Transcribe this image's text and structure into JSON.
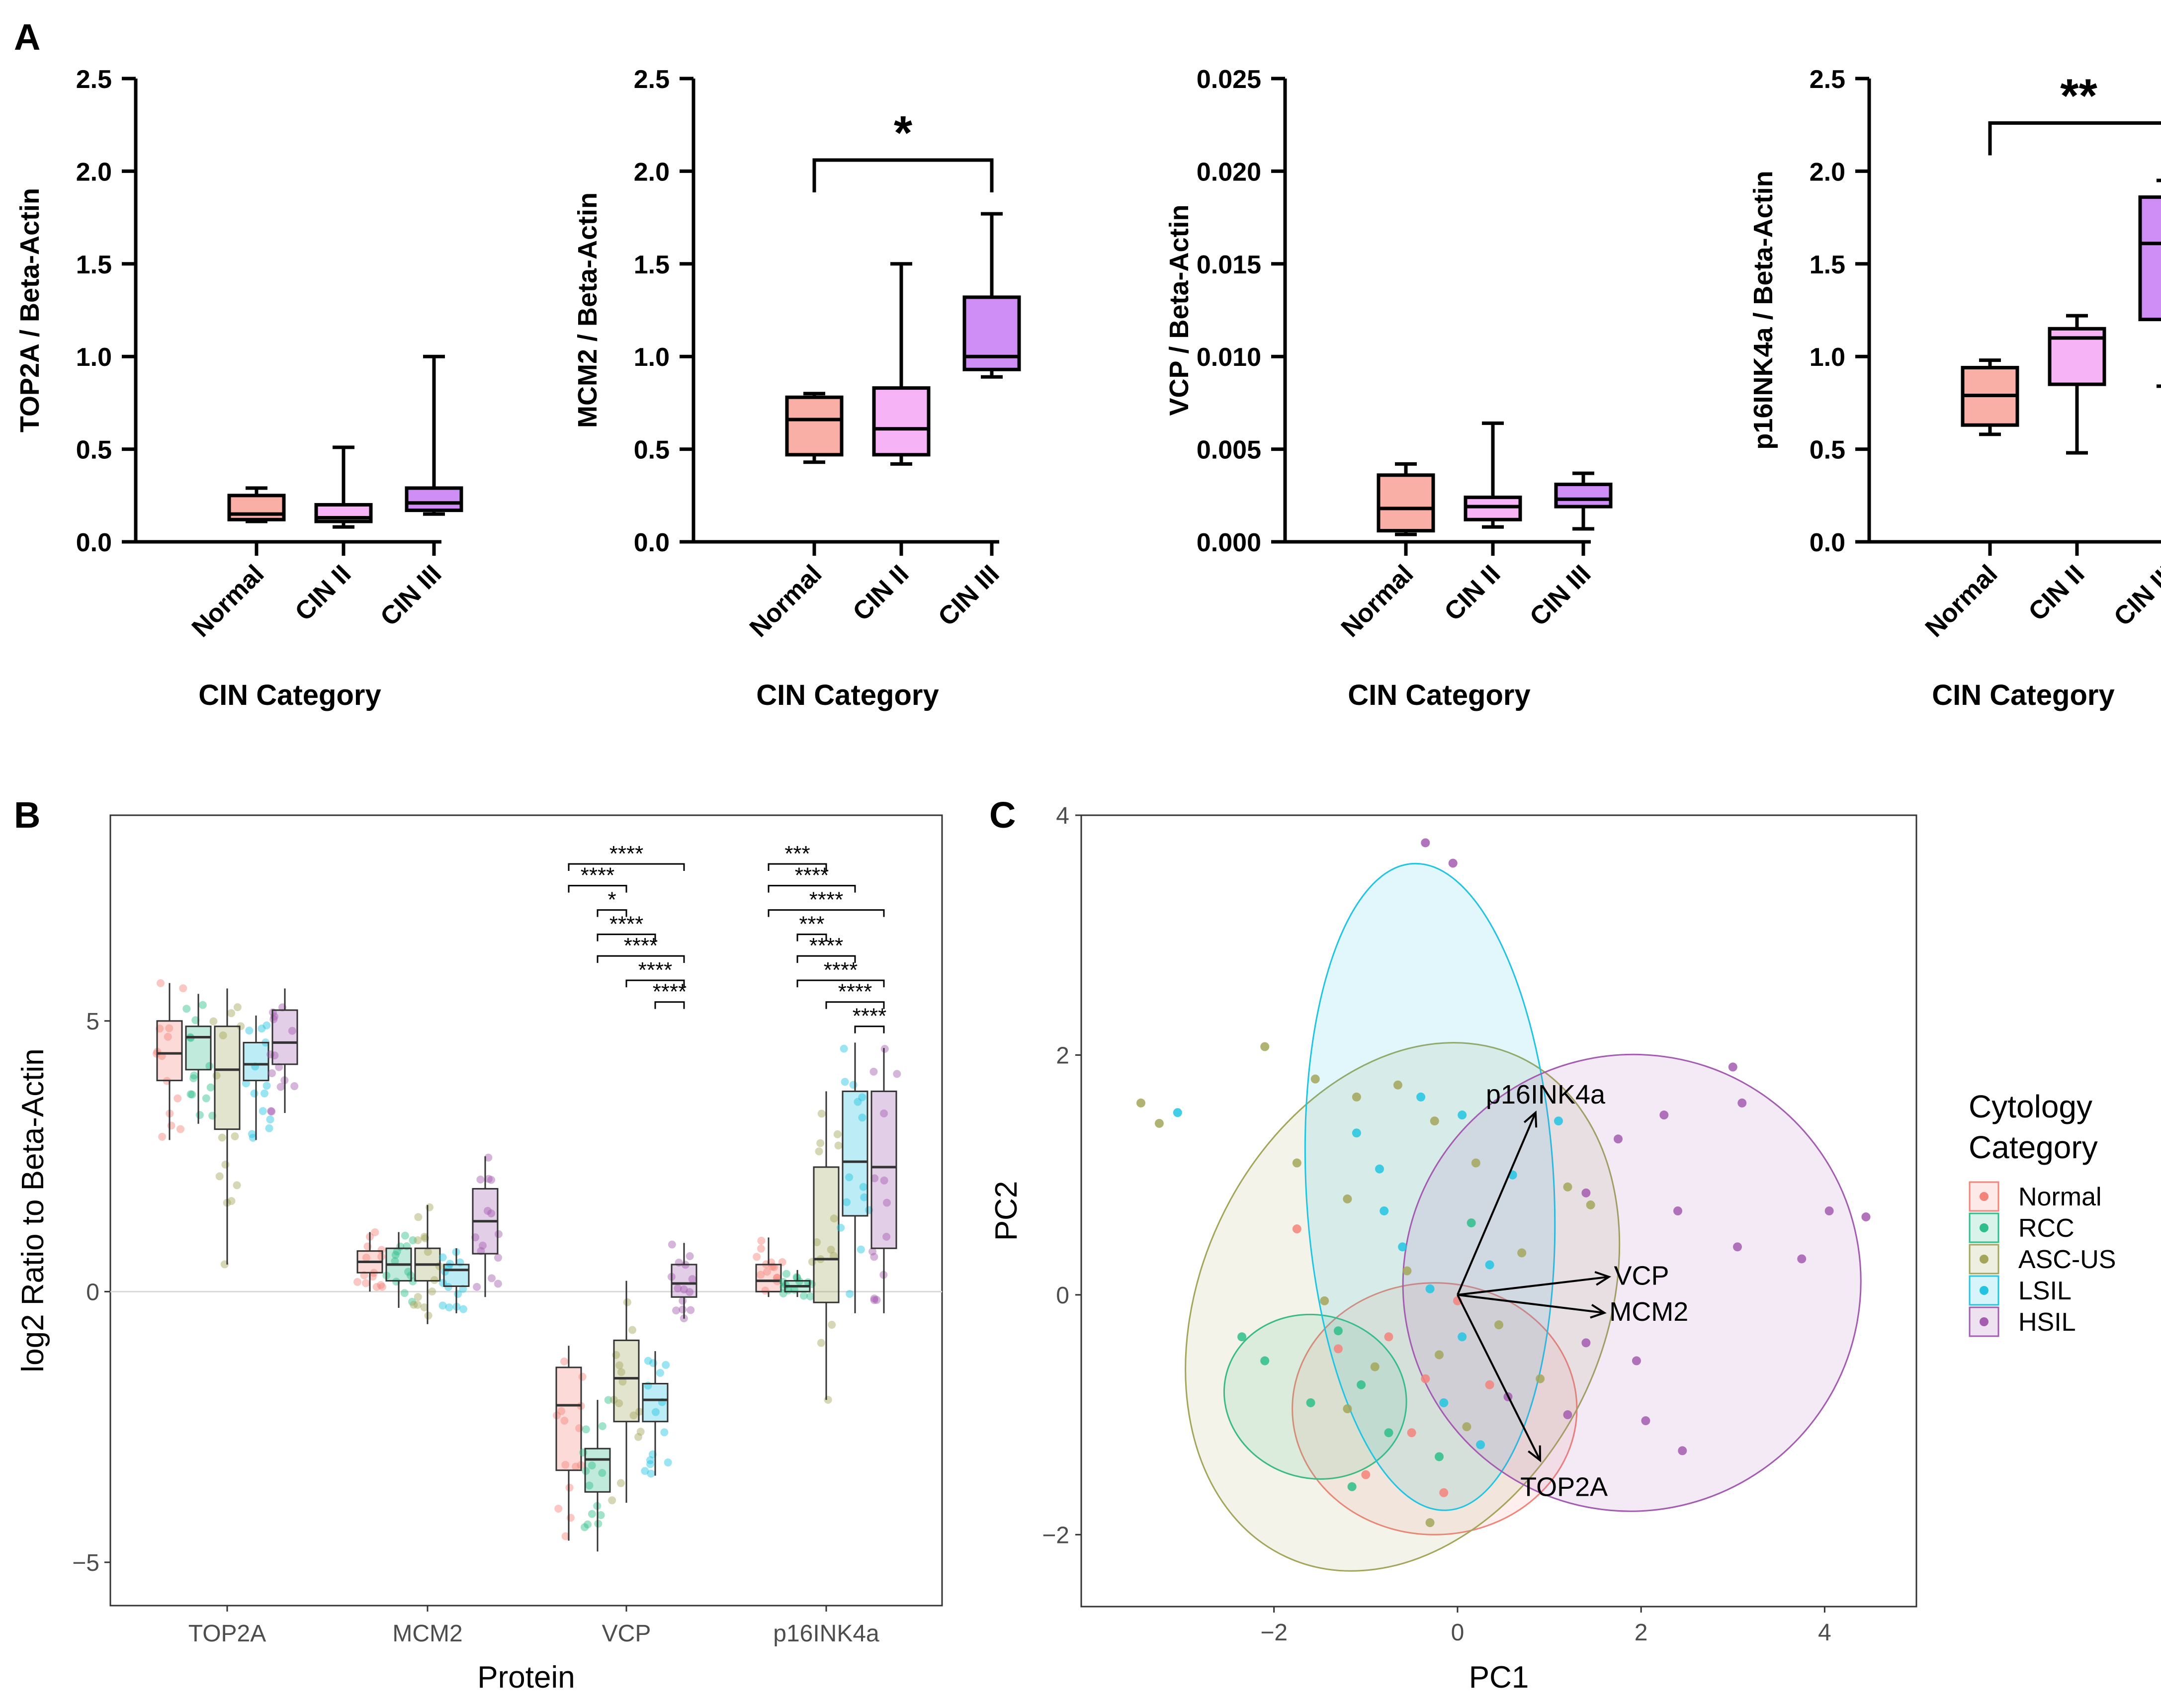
{
  "panel_labels": [
    "A",
    "B",
    "C"
  ],
  "colors": {
    "normal": "#F4837A",
    "rcc": "#2DBE8A",
    "ascus": "#A3A65A",
    "lsil": "#22C4E2",
    "hsil": "#A35CB0",
    "a_normal_fill": "#FAAFA6",
    "a_cin2_fill": "#F6B3F5",
    "a_cin3_fill": "#CF8EF5"
  },
  "chart_data": [
    {
      "id": "A1",
      "type": "box",
      "title": "",
      "xlabel": "CIN Category",
      "ylabel": "TOP2A / Beta-Actin",
      "categories": [
        "Normal",
        "CIN II",
        "CIN III"
      ],
      "ylim": [
        0,
        2.5
      ],
      "yticks": [
        "0.0",
        "0.5",
        "1.0",
        "1.5",
        "2.0",
        "2.5"
      ],
      "boxes": [
        {
          "min": 0.11,
          "q1": 0.12,
          "median": 0.15,
          "q3": 0.25,
          "max": 0.29
        },
        {
          "min": 0.08,
          "q1": 0.11,
          "median": 0.13,
          "q3": 0.2,
          "max": 0.51
        },
        {
          "min": 0.15,
          "q1": 0.17,
          "median": 0.21,
          "q3": 0.29,
          "max": 1.0
        }
      ],
      "significance": []
    },
    {
      "id": "A2",
      "type": "box",
      "title": "",
      "xlabel": "CIN Category",
      "ylabel": "MCM2 / Beta-Actin",
      "categories": [
        "Normal",
        "CIN II",
        "CIN III"
      ],
      "ylim": [
        0,
        2.5
      ],
      "yticks": [
        "0.0",
        "0.5",
        "1.0",
        "1.5",
        "2.0",
        "2.5"
      ],
      "boxes": [
        {
          "min": 0.43,
          "q1": 0.47,
          "median": 0.66,
          "q3": 0.78,
          "max": 0.8
        },
        {
          "min": 0.42,
          "q1": 0.47,
          "median": 0.61,
          "q3": 0.83,
          "max": 1.5
        },
        {
          "min": 0.89,
          "q1": 0.93,
          "median": 1.0,
          "q3": 1.32,
          "max": 1.77
        }
      ],
      "significance": [
        {
          "from": 0,
          "to": 2,
          "y": 2.06,
          "label": "*"
        }
      ]
    },
    {
      "id": "A3",
      "type": "box",
      "title": "",
      "xlabel": "CIN Category",
      "ylabel": "VCP / Beta-Actin",
      "categories": [
        "Normal",
        "CIN II",
        "CIN III"
      ],
      "ylim": [
        0,
        0.025
      ],
      "yticks": [
        "0.000",
        "0.005",
        "0.010",
        "0.015",
        "0.020",
        "0.025"
      ],
      "boxes": [
        {
          "min": 0.0004,
          "q1": 0.0006,
          "median": 0.0018,
          "q3": 0.0036,
          "max": 0.0042
        },
        {
          "min": 0.0008,
          "q1": 0.0012,
          "median": 0.0019,
          "q3": 0.0024,
          "max": 0.0064
        },
        {
          "min": 0.0007,
          "q1": 0.0019,
          "median": 0.0023,
          "q3": 0.0031,
          "max": 0.0037
        }
      ],
      "significance": []
    },
    {
      "id": "A4",
      "type": "box",
      "title": "",
      "xlabel": "CIN Category",
      "ylabel": "p16INK4a / Beta-Actin",
      "categories": [
        "Normal",
        "CIN II",
        "CIN III"
      ],
      "ylim": [
        0,
        2.5
      ],
      "yticks": [
        "0.0",
        "0.5",
        "1.0",
        "1.5",
        "2.0",
        "2.5"
      ],
      "boxes": [
        {
          "min": 0.58,
          "q1": 0.63,
          "median": 0.79,
          "q3": 0.94,
          "max": 0.98
        },
        {
          "min": 0.48,
          "q1": 0.85,
          "median": 1.1,
          "q3": 1.15,
          "max": 1.22
        },
        {
          "min": 0.84,
          "q1": 1.2,
          "median": 1.61,
          "q3": 1.86,
          "max": 1.95
        }
      ],
      "significance": [
        {
          "from": 0,
          "to": 2,
          "y": 2.26,
          "label": "**"
        }
      ]
    },
    {
      "id": "B",
      "type": "box",
      "title": "",
      "xlabel": "Protein",
      "ylabel": "log2 Ratio to Beta-Actin",
      "categories": [
        "TOP2A",
        "MCM2",
        "VCP",
        "p16INK4a"
      ],
      "groups": [
        "Normal",
        "RCC",
        "ASC-US",
        "LSIL",
        "HSIL"
      ],
      "ylim": [
        -5.8,
        8.8
      ],
      "yticks": [
        -5,
        0,
        5
      ],
      "ytick_labels": [
        "−5",
        "0",
        "5"
      ],
      "series": [
        {
          "name": "TOP2A",
          "boxes": [
            {
              "min": 2.8,
              "q1": 3.9,
              "median": 4.4,
              "q3": 5.0,
              "max": 5.7
            },
            {
              "min": 3.1,
              "q1": 4.1,
              "median": 4.7,
              "q3": 4.9,
              "max": 5.5
            },
            {
              "min": 0.5,
              "q1": 3.0,
              "median": 4.1,
              "q3": 4.9,
              "max": 5.6
            },
            {
              "min": 2.8,
              "q1": 3.9,
              "median": 4.2,
              "q3": 4.6,
              "max": 5.1
            },
            {
              "min": 3.3,
              "q1": 4.2,
              "median": 4.6,
              "q3": 5.2,
              "max": 5.6
            }
          ]
        },
        {
          "name": "MCM2",
          "boxes": [
            {
              "min": 0.0,
              "q1": 0.35,
              "median": 0.55,
              "q3": 0.75,
              "max": 1.1
            },
            {
              "min": -0.3,
              "q1": 0.2,
              "median": 0.5,
              "q3": 0.8,
              "max": 1.1
            },
            {
              "min": -0.6,
              "q1": 0.2,
              "median": 0.5,
              "q3": 0.8,
              "max": 1.6
            },
            {
              "min": -0.4,
              "q1": 0.1,
              "median": 0.4,
              "q3": 0.5,
              "max": 0.8
            },
            {
              "min": -0.1,
              "q1": 0.7,
              "median": 1.3,
              "q3": 1.9,
              "max": 2.5
            }
          ]
        },
        {
          "name": "VCP",
          "boxes": [
            {
              "min": -4.6,
              "q1": -3.3,
              "median": -2.1,
              "q3": -1.4,
              "max": -1.0
            },
            {
              "min": -4.8,
              "q1": -3.7,
              "median": -3.1,
              "q3": -2.9,
              "max": -2.0
            },
            {
              "min": -3.9,
              "q1": -2.4,
              "median": -1.6,
              "q3": -0.9,
              "max": 0.2
            },
            {
              "min": -3.4,
              "q1": -2.4,
              "median": -2.0,
              "q3": -1.7,
              "max": -1.1
            },
            {
              "min": -0.5,
              "q1": -0.1,
              "median": 0.15,
              "q3": 0.5,
              "max": 0.9
            }
          ]
        },
        {
          "name": "p16INK4a",
          "boxes": [
            {
              "min": -0.1,
              "q1": 0.0,
              "median": 0.2,
              "q3": 0.5,
              "max": 1.0
            },
            {
              "min": -0.1,
              "q1": 0.0,
              "median": 0.1,
              "q3": 0.2,
              "max": 0.4
            },
            {
              "min": -2.0,
              "q1": -0.2,
              "median": 0.6,
              "q3": 2.3,
              "max": 3.7
            },
            {
              "min": -0.4,
              "q1": 1.4,
              "median": 2.4,
              "q3": 3.7,
              "max": 4.6
            },
            {
              "min": -0.4,
              "q1": 0.8,
              "median": 2.3,
              "q3": 3.7,
              "max": 4.5
            }
          ]
        }
      ],
      "significance": [
        {
          "protein": 2,
          "from": 0,
          "to": 4,
          "y": 7.9,
          "label": "****"
        },
        {
          "protein": 2,
          "from": 0,
          "to": 2,
          "y": 7.5,
          "label": "****"
        },
        {
          "protein": 2,
          "from": 1,
          "to": 2,
          "y": 7.05,
          "label": "*"
        },
        {
          "protein": 2,
          "from": 1,
          "to": 3,
          "y": 6.6,
          "label": "****"
        },
        {
          "protein": 2,
          "from": 1,
          "to": 4,
          "y": 6.2,
          "label": "****"
        },
        {
          "protein": 2,
          "from": 2,
          "to": 4,
          "y": 5.75,
          "label": "****"
        },
        {
          "protein": 2,
          "from": 3,
          "to": 4,
          "y": 5.35,
          "label": "****"
        },
        {
          "protein": 3,
          "from": 0,
          "to": 2,
          "y": 7.9,
          "label": "***"
        },
        {
          "protein": 3,
          "from": 0,
          "to": 3,
          "y": 7.5,
          "label": "****"
        },
        {
          "protein": 3,
          "from": 0,
          "to": 4,
          "y": 7.05,
          "label": "****"
        },
        {
          "protein": 3,
          "from": 1,
          "to": 2,
          "y": 6.6,
          "label": "***"
        },
        {
          "protein": 3,
          "from": 1,
          "to": 3,
          "y": 6.2,
          "label": "****"
        },
        {
          "protein": 3,
          "from": 1,
          "to": 4,
          "y": 5.75,
          "label": "****"
        },
        {
          "protein": 3,
          "from": 2,
          "to": 4,
          "y": 5.35,
          "label": "****"
        },
        {
          "protein": 3,
          "from": 3,
          "to": 4,
          "y": 4.9,
          "label": "****"
        }
      ]
    },
    {
      "id": "C",
      "type": "scatter",
      "title": "",
      "xlabel": "PC1",
      "ylabel": "PC2",
      "xlim": [
        -4.1,
        5.0
      ],
      "ylim": [
        -2.6,
        4.0
      ],
      "xticks": [
        -2,
        0,
        2,
        4
      ],
      "yticks": [
        -2,
        0,
        2,
        4
      ],
      "xtick_labels": [
        "−2",
        "0",
        "2",
        "4"
      ],
      "ytick_labels": [
        "−2",
        "0",
        "2",
        "4"
      ],
      "legend": {
        "title_line1": "Cytology",
        "title_line2": "Category",
        "entries": [
          "Normal",
          "RCC",
          "ASC-US",
          "LSIL",
          "HSIL"
        ],
        "placement": "right"
      },
      "ellipses": [
        {
          "group": "Normal",
          "cx": -0.25,
          "cy": -0.95,
          "rx": 1.55,
          "ry": 1.05,
          "angle": 0
        },
        {
          "group": "RCC",
          "cx": -1.55,
          "cy": -0.85,
          "rx": 1.0,
          "ry": 0.68,
          "angle": -15
        },
        {
          "group": "ASC-US",
          "cx": -0.6,
          "cy": -0.1,
          "rx": 2.2,
          "ry": 2.3,
          "angle": -25
        },
        {
          "group": "LSIL",
          "cx": -0.3,
          "cy": 0.9,
          "rx": 1.35,
          "ry": 2.7,
          "angle": 3
        },
        {
          "group": "HSIL",
          "cx": 1.9,
          "cy": 0.1,
          "rx": 2.5,
          "ry": 1.9,
          "angle": 35
        }
      ],
      "loadings": [
        {
          "name": "p16INK4a",
          "x": 0.85,
          "y": 1.52
        },
        {
          "name": "VCP",
          "x": 1.65,
          "y": 0.15
        },
        {
          "name": "MCM2",
          "x": 1.6,
          "y": -0.15
        },
        {
          "name": "TOP2A",
          "x": 0.9,
          "y": -1.38
        }
      ],
      "points": [
        {
          "g": 4,
          "x": -0.35,
          "y": 3.77
        },
        {
          "g": 4,
          "x": -0.05,
          "y": 3.6
        },
        {
          "g": 2,
          "x": -3.45,
          "y": 1.6
        },
        {
          "g": 2,
          "x": -3.25,
          "y": 1.43
        },
        {
          "g": 3,
          "x": -3.05,
          "y": 1.52
        },
        {
          "g": 2,
          "x": -2.1,
          "y": 2.07
        },
        {
          "g": 2,
          "x": -1.55,
          "y": 1.8
        },
        {
          "g": 2,
          "x": -1.1,
          "y": 1.65
        },
        {
          "g": 3,
          "x": -1.1,
          "y": 1.35
        },
        {
          "g": 2,
          "x": -0.65,
          "y": 1.75
        },
        {
          "g": 3,
          "x": -0.4,
          "y": 1.65
        },
        {
          "g": 2,
          "x": -0.25,
          "y": 1.45
        },
        {
          "g": 3,
          "x": 0.05,
          "y": 1.5
        },
        {
          "g": 2,
          "x": -1.75,
          "y": 1.1
        },
        {
          "g": 2,
          "x": -1.2,
          "y": 0.8
        },
        {
          "g": 3,
          "x": -0.8,
          "y": 0.7
        },
        {
          "g": 2,
          "x": 0.2,
          "y": 1.1
        },
        {
          "g": 3,
          "x": 0.6,
          "y": 1.0
        },
        {
          "g": 3,
          "x": 1.1,
          "y": 1.45
        },
        {
          "g": 2,
          "x": 1.2,
          "y": 0.9
        },
        {
          "g": 2,
          "x": 1.45,
          "y": 0.75
        },
        {
          "g": 4,
          "x": 1.4,
          "y": 0.85
        },
        {
          "g": 4,
          "x": 1.75,
          "y": 1.3
        },
        {
          "g": 4,
          "x": 2.25,
          "y": 1.5
        },
        {
          "g": 4,
          "x": 3.0,
          "y": 1.9
        },
        {
          "g": 4,
          "x": 3.1,
          "y": 1.6
        },
        {
          "g": 4,
          "x": 3.05,
          "y": 0.4
        },
        {
          "g": 4,
          "x": 4.05,
          "y": 0.7
        },
        {
          "g": 4,
          "x": 4.45,
          "y": 0.65
        },
        {
          "g": 4,
          "x": 3.75,
          "y": 0.3
        },
        {
          "g": 4,
          "x": 2.4,
          "y": 0.7
        },
        {
          "g": 4,
          "x": 1.95,
          "y": -0.55
        },
        {
          "g": 4,
          "x": 2.05,
          "y": -1.05
        },
        {
          "g": 4,
          "x": 2.45,
          "y": -1.3
        },
        {
          "g": 4,
          "x": 1.4,
          "y": -0.4
        },
        {
          "g": 4,
          "x": 1.2,
          "y": -1.0
        },
        {
          "g": 4,
          "x": 0.55,
          "y": -0.85
        },
        {
          "g": 0,
          "x": -1.75,
          "y": 0.55
        },
        {
          "g": 0,
          "x": -0.75,
          "y": -0.35
        },
        {
          "g": 0,
          "x": -0.5,
          "y": -1.15
        },
        {
          "g": 0,
          "x": -1.0,
          "y": -1.5
        },
        {
          "g": 0,
          "x": -0.15,
          "y": -1.65
        },
        {
          "g": 0,
          "x": 0.35,
          "y": -0.75
        },
        {
          "g": 0,
          "x": -1.3,
          "y": -0.45
        },
        {
          "g": 1,
          "x": -2.35,
          "y": -0.35
        },
        {
          "g": 1,
          "x": -2.1,
          "y": -0.55
        },
        {
          "g": 1,
          "x": -1.6,
          "y": -0.9
        },
        {
          "g": 1,
          "x": -1.3,
          "y": -0.3
        },
        {
          "g": 1,
          "x": -1.05,
          "y": -0.75
        },
        {
          "g": 1,
          "x": -0.75,
          "y": -1.15
        },
        {
          "g": 1,
          "x": -1.15,
          "y": -1.6
        },
        {
          "g": 1,
          "x": -0.2,
          "y": -1.35
        },
        {
          "g": 2,
          "x": -1.45,
          "y": -0.05
        },
        {
          "g": 2,
          "x": -1.2,
          "y": -0.95
        },
        {
          "g": 2,
          "x": -0.55,
          "y": 0.2
        },
        {
          "g": 2,
          "x": -0.2,
          "y": -0.5
        },
        {
          "g": 2,
          "x": 0.1,
          "y": -1.1
        },
        {
          "g": 2,
          "x": 0.45,
          "y": -0.25
        },
        {
          "g": 2,
          "x": 0.7,
          "y": 0.35
        },
        {
          "g": 2,
          "x": -0.3,
          "y": -1.9
        },
        {
          "g": 2,
          "x": -0.9,
          "y": -0.6
        },
        {
          "g": 3,
          "x": -0.6,
          "y": 0.4
        },
        {
          "g": 3,
          "x": -0.3,
          "y": 0.05
        },
        {
          "g": 3,
          "x": 0.05,
          "y": -0.35
        },
        {
          "g": 3,
          "x": 0.35,
          "y": 0.25
        },
        {
          "g": 3,
          "x": -0.15,
          "y": -0.9
        },
        {
          "g": 3,
          "x": 0.25,
          "y": -1.25
        },
        {
          "g": 3,
          "x": -0.85,
          "y": 1.05
        },
        {
          "g": 0,
          "x": 0.0,
          "y": -0.05
        },
        {
          "g": 0,
          "x": -0.35,
          "y": -0.7
        },
        {
          "g": 1,
          "x": 0.15,
          "y": 0.6
        },
        {
          "g": 2,
          "x": 0.9,
          "y": -0.7
        }
      ]
    }
  ]
}
